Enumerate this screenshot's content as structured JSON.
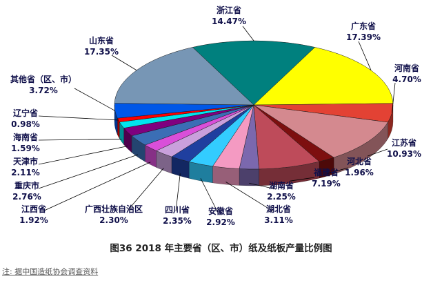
{
  "figure": {
    "title": "图36  2018 年主要省（区、市）纸及纸板产量比例图",
    "note": "注: 据中国造纸协会调查资料"
  },
  "chart_data": {
    "type": "pie",
    "style": "3d",
    "title": "图36  2018 年主要省（区、市）纸及纸板产量比例图",
    "unit": "percent",
    "legend_position": "callout-labels",
    "slices": [
      {
        "label": "浙江省",
        "value": 14.47,
        "display": "14.47%",
        "color": "#00807E"
      },
      {
        "label": "广东省",
        "value": 17.39,
        "display": "17.39%",
        "color": "#FFFF00"
      },
      {
        "label": "河南省",
        "value": 4.7,
        "display": "4.70%",
        "color": "#E34234"
      },
      {
        "label": "江苏省",
        "value": 10.93,
        "display": "10.93%",
        "color": "#D4898F"
      },
      {
        "label": "河北省",
        "value": 1.96,
        "display": "1.96%",
        "color": "#7D0F0F"
      },
      {
        "label": "福建省",
        "value": 7.19,
        "display": "7.19%",
        "color": "#BE4B5A"
      },
      {
        "label": "湖南省",
        "value": 2.25,
        "display": "2.25%",
        "color": "#7B68AE"
      },
      {
        "label": "湖北省",
        "value": 3.11,
        "display": "3.11%",
        "color": "#F49AC2"
      },
      {
        "label": "安徽省",
        "value": 2.92,
        "display": "2.92%",
        "color": "#33CCFF"
      },
      {
        "label": "四川省",
        "value": 2.35,
        "display": "2.35%",
        "color": "#1F3F9F"
      },
      {
        "label": "广西壮族自治区",
        "value": 2.3,
        "display": "2.30%",
        "color": "#C9A0DC"
      },
      {
        "label": "江西省",
        "value": 1.92,
        "display": "1.92%",
        "color": "#D94FD9"
      },
      {
        "label": "重庆市",
        "value": 2.76,
        "display": "2.76%",
        "color": "#3B6EB5"
      },
      {
        "label": "天津市",
        "value": 2.11,
        "display": "2.11%",
        "color": "#7F007F"
      },
      {
        "label": "海南省",
        "value": 1.59,
        "display": "1.59%",
        "color": "#00E5EE"
      },
      {
        "label": "辽宁省",
        "value": 0.98,
        "display": "0.98%",
        "color": "#FF0000"
      },
      {
        "label": "其他省（区、市）",
        "value": 3.72,
        "display": "3.72%",
        "color": "#0057E7"
      },
      {
        "label": "山东省",
        "value": 17.35,
        "display": "17.35%",
        "color": "#7796B5"
      }
    ]
  }
}
